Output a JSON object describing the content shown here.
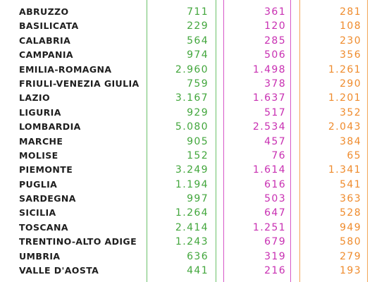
{
  "columns": {
    "green_color": "#42a63c",
    "magenta_color": "#c82fb2",
    "orange_color": "#ef8b2c"
  },
  "rows": [
    {
      "region": "ABRUZZO",
      "v1": "711",
      "v2": "361",
      "v3": "281"
    },
    {
      "region": "BASILICATA",
      "v1": "229",
      "v2": "120",
      "v3": "108"
    },
    {
      "region": "CALABRIA",
      "v1": "564",
      "v2": "285",
      "v3": "230"
    },
    {
      "region": "CAMPANIA",
      "v1": "974",
      "v2": "506",
      "v3": "356"
    },
    {
      "region": "EMILIA-ROMAGNA",
      "v1": "2.960",
      "v2": "1.498",
      "v3": "1.261"
    },
    {
      "region": "FRIULI-VENEZIA GIULIA",
      "v1": "759",
      "v2": "378",
      "v3": "290"
    },
    {
      "region": "LAZIO",
      "v1": "3.167",
      "v2": "1.637",
      "v3": "1.201"
    },
    {
      "region": "LIGURIA",
      "v1": "929",
      "v2": "517",
      "v3": "352"
    },
    {
      "region": "LOMBARDIA",
      "v1": "5.080",
      "v2": "2.534",
      "v3": "2.043"
    },
    {
      "region": "MARCHE",
      "v1": "905",
      "v2": "457",
      "v3": "384"
    },
    {
      "region": "MOLISE",
      "v1": "152",
      "v2": "76",
      "v3": "65"
    },
    {
      "region": "PIEMONTE",
      "v1": "3.249",
      "v2": "1.614",
      "v3": "1.341"
    },
    {
      "region": "PUGLIA",
      "v1": "1.194",
      "v2": "616",
      "v3": "541"
    },
    {
      "region": "SARDEGNA",
      "v1": "997",
      "v2": "503",
      "v3": "363"
    },
    {
      "region": "SICILIA",
      "v1": "1.264",
      "v2": "647",
      "v3": "528"
    },
    {
      "region": "TOSCANA",
      "v1": "2.414",
      "v2": "1.251",
      "v3": "949"
    },
    {
      "region": "TRENTINO-ALTO ADIGE",
      "v1": "1.243",
      "v2": "679",
      "v3": "580"
    },
    {
      "region": "UMBRIA",
      "v1": "636",
      "v2": "319",
      "v3": "279"
    },
    {
      "region": "VALLE D'AOSTA",
      "v1": "441",
      "v2": "216",
      "v3": "193"
    }
  ]
}
